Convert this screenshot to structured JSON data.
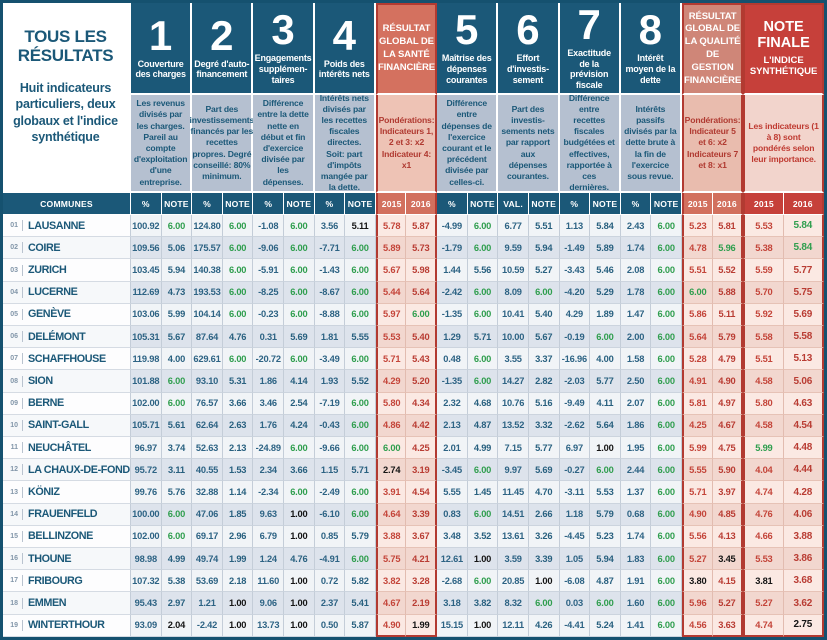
{
  "colors": {
    "navy": "#1b5878",
    "desc_blue": "#b5c0d0",
    "salmon": "#d4715f",
    "salmon_light": "#cf8678",
    "red": "#c6403a",
    "green": "#2f9e4e",
    "value_red": "#c4453a"
  },
  "panel": {
    "title": "TOUS LES RÉSULTATS",
    "subtitle": "Huit indicateurs particuliers, deux globaux et l'indice synthétique"
  },
  "header": {
    "groups": [
      {
        "kind": "indicator",
        "num": "1",
        "title": "Couverture des charges",
        "desc": "Les revenus divisés par les charges. Pareil au compte d'exploitation d'une entreprise."
      },
      {
        "kind": "indicator",
        "num": "2",
        "title": "Degré d'auto-financement",
        "desc": "Part des investissements financés par les recettes propres. Degré conseillé: 80% minimum."
      },
      {
        "kind": "indicator",
        "num": "3",
        "title": "Engagements supplémen-taires",
        "desc": "Différence entre la dette nette en début et fin d'exercice divisée par les dépenses."
      },
      {
        "kind": "indicator",
        "num": "4",
        "title": "Poids des intérêts nets",
        "desc": "Intérêts nets divisés par les recettes fiscales directes. Soit: part d'impôts mangée par la dette."
      },
      {
        "kind": "sante",
        "title": "RÉSULTAT GLOBAL DE LA SANTÉ FINANCIÈRE",
        "desc": "Pondérations: Indicateurs 1, 2 et 3: x2 Indicateur 4: x1"
      },
      {
        "kind": "indicator",
        "num": "5",
        "title": "Maîtrise des dépenses courantes",
        "desc": "Différence entre dépenses de l'exercice courant et le précédent divisée par celles-ci."
      },
      {
        "kind": "indicator",
        "num": "6",
        "title": "Effort d'investis-sement",
        "desc": "Part des investis-sements nets par rapport aux dépenses courantes."
      },
      {
        "kind": "indicator",
        "num": "7",
        "title": "Exactitude de la prévision fiscale",
        "desc": "Différence entre recettes fiscales budgétées et effectives, rapportée à ces dernières."
      },
      {
        "kind": "indicator",
        "num": "8",
        "title": "Intérêt moyen de la dette",
        "desc": "Intérêts passifs divisés par la dette brute à la fin de l'exercice sous revue."
      },
      {
        "kind": "quality",
        "title": "RÉSULTAT GLOBAL DE LA QUALITÉ DE GESTION FINANCIÈRE",
        "desc": "Pondérations: Indicateur 5 et 6: x2 Indicateurs 7 et 8: x1"
      },
      {
        "kind": "finale",
        "title": "NOTE FINALE",
        "subtitle": "L'INDICE SYNTHÉTIQUE",
        "desc": "Les indicateurs (1 à 8) sont pondérés selon leur importance."
      }
    ]
  },
  "table": {
    "commune_header": "COMMUNES",
    "sub_headers": [
      "%",
      "NOTE",
      "%",
      "NOTE",
      "%",
      "NOTE",
      "%",
      "NOTE",
      "2015",
      "2016",
      "%",
      "NOTE",
      "VAL.",
      "NOTE",
      "%",
      "NOTE",
      "%",
      "NOTE",
      "2015",
      "2016",
      "2015",
      "2016"
    ],
    "column_types": [
      "plain",
      "note",
      "plain",
      "note",
      "plain",
      "note",
      "plain",
      "note",
      "red15",
      "red16",
      "plain",
      "note",
      "plain",
      "note",
      "plain",
      "note",
      "plain",
      "note",
      "red15",
      "red16",
      "fin15",
      "fin16"
    ],
    "rows": [
      {
        "rank": "01",
        "name": "LAUSANNE",
        "values": [
          "100.92",
          "6.00",
          "124.80",
          "6.00",
          "-1.08",
          "6.00",
          "3.56",
          "5.11",
          "5.78",
          "5.87",
          "-4.99",
          "6.00",
          "6.77",
          "5.51",
          "1.13",
          "5.84",
          "2.43",
          "6.00",
          "5.23",
          "5.81",
          "5.53",
          "5.84"
        ]
      },
      {
        "rank": "02",
        "name": "COIRE",
        "values": [
          "109.56",
          "5.06",
          "175.57",
          "6.00",
          "-9.06",
          "6.00",
          "-7.71",
          "6.00",
          "5.89",
          "5.73",
          "-1.79",
          "6.00",
          "9.59",
          "5.94",
          "-1.49",
          "5.89",
          "1.74",
          "6.00",
          "4.78",
          "5.96",
          "5.38",
          "5.84"
        ]
      },
      {
        "rank": "03",
        "name": "ZURICH",
        "values": [
          "103.45",
          "5.94",
          "140.38",
          "6.00",
          "-5.91",
          "6.00",
          "-1.43",
          "6.00",
          "5.67",
          "5.98",
          "1.44",
          "5.56",
          "10.59",
          "5.27",
          "-3.43",
          "5.46",
          "2.08",
          "6.00",
          "5.51",
          "5.52",
          "5.59",
          "5.77"
        ]
      },
      {
        "rank": "04",
        "name": "LUCERNE",
        "values": [
          "112.69",
          "4.73",
          "193.53",
          "6.00",
          "-8.25",
          "6.00",
          "-8.67",
          "6.00",
          "5.44",
          "5.64",
          "-2.42",
          "6.00",
          "8.09",
          "6.00",
          "-4.20",
          "5.29",
          "1.78",
          "6.00",
          "6.00",
          "5.88",
          "5.70",
          "5.75"
        ]
      },
      {
        "rank": "05",
        "name": "GENÈVE",
        "values": [
          "103.06",
          "5.99",
          "104.14",
          "6.00",
          "-0.23",
          "6.00",
          "-8.88",
          "6.00",
          "5.97",
          "6.00",
          "-1.35",
          "6.00",
          "10.41",
          "5.40",
          "4.29",
          "1.89",
          "1.47",
          "6.00",
          "5.86",
          "5.11",
          "5.92",
          "5.69"
        ]
      },
      {
        "rank": "06",
        "name": "DELÉMONT",
        "values": [
          "105.31",
          "5.67",
          "87.64",
          "4.76",
          "0.31",
          "5.69",
          "1.81",
          "5.55",
          "5.53",
          "5.40",
          "1.29",
          "5.71",
          "10.00",
          "5.67",
          "-0.19",
          "6.00",
          "2.00",
          "6.00",
          "5.64",
          "5.79",
          "5.58",
          "5.58"
        ]
      },
      {
        "rank": "07",
        "name": "SCHAFFHOUSE",
        "values": [
          "119.98",
          "4.00",
          "629.61",
          "6.00",
          "-20.72",
          "6.00",
          "-3.49",
          "6.00",
          "5.71",
          "5.43",
          "0.48",
          "6.00",
          "3.55",
          "3.37",
          "-16.96",
          "4.00",
          "1.58",
          "6.00",
          "5.28",
          "4.79",
          "5.51",
          "5.13"
        ]
      },
      {
        "rank": "08",
        "name": "SION",
        "values": [
          "101.88",
          "6.00",
          "93.10",
          "5.31",
          "1.86",
          "4.14",
          "1.93",
          "5.52",
          "4.29",
          "5.20",
          "-1.35",
          "6.00",
          "14.27",
          "2.82",
          "-2.03",
          "5.77",
          "2.50",
          "6.00",
          "4.91",
          "4.90",
          "4.58",
          "5.06"
        ]
      },
      {
        "rank": "09",
        "name": "BERNE",
        "values": [
          "102.00",
          "6.00",
          "76.57",
          "3.66",
          "3.46",
          "2.54",
          "-7.19",
          "6.00",
          "5.80",
          "4.34",
          "2.32",
          "4.68",
          "10.76",
          "5.16",
          "-9.49",
          "4.11",
          "2.07",
          "6.00",
          "5.81",
          "4.97",
          "5.80",
          "4.63"
        ]
      },
      {
        "rank": "10",
        "name": "SAINT-GALL",
        "values": [
          "105.71",
          "5.61",
          "62.64",
          "2.63",
          "1.76",
          "4.24",
          "-0.43",
          "6.00",
          "4.86",
          "4.42",
          "2.13",
          "4.87",
          "13.52",
          "3.32",
          "-2.62",
          "5.64",
          "1.86",
          "6.00",
          "4.25",
          "4.67",
          "4.58",
          "4.54"
        ]
      },
      {
        "rank": "11",
        "name": "NEUCHÂTEL",
        "values": [
          "96.97",
          "3.74",
          "52.63",
          "2.13",
          "-24.89",
          "6.00",
          "-9.66",
          "6.00",
          "6.00",
          "4.25",
          "2.01",
          "4.99",
          "7.15",
          "5.77",
          "6.97",
          "1.00",
          "1.95",
          "6.00",
          "5.99",
          "4.75",
          "5.99",
          "4.48"
        ]
      },
      {
        "rank": "12",
        "name": "LA CHAUX-DE-FONDS",
        "values": [
          "95.72",
          "3.11",
          "40.55",
          "1.53",
          "2.34",
          "3.66",
          "1.15",
          "5.71",
          "2.74",
          "3.19",
          "-3.45",
          "6.00",
          "9.97",
          "5.69",
          "-0.27",
          "6.00",
          "2.44",
          "6.00",
          "5.55",
          "5.90",
          "4.04",
          "4.44"
        ]
      },
      {
        "rank": "13",
        "name": "KÖNIZ",
        "values": [
          "99.76",
          "5.76",
          "32.88",
          "1.14",
          "-2.34",
          "6.00",
          "-2.49",
          "6.00",
          "3.91",
          "4.54",
          "5.55",
          "1.45",
          "11.45",
          "4.70",
          "-3.11",
          "5.53",
          "1.37",
          "6.00",
          "5.71",
          "3.97",
          "4.74",
          "4.28"
        ]
      },
      {
        "rank": "14",
        "name": "FRAUENFELD",
        "values": [
          "100.00",
          "6.00",
          "47.06",
          "1.85",
          "9.63",
          "1.00",
          "-6.10",
          "6.00",
          "4.64",
          "3.39",
          "0.83",
          "6.00",
          "14.51",
          "2.66",
          "1.18",
          "5.79",
          "0.68",
          "6.00",
          "4.90",
          "4.85",
          "4.76",
          "4.06"
        ]
      },
      {
        "rank": "15",
        "name": "BELLINZONE",
        "values": [
          "102.00",
          "6.00",
          "69.17",
          "2.96",
          "6.79",
          "1.00",
          "0.85",
          "5.79",
          "3.88",
          "3.67",
          "3.48",
          "3.52",
          "13.61",
          "3.26",
          "-4.45",
          "5.23",
          "1.74",
          "6.00",
          "5.56",
          "4.13",
          "4.66",
          "3.88"
        ]
      },
      {
        "rank": "16",
        "name": "THOUNE",
        "values": [
          "98.98",
          "4.99",
          "49.74",
          "1.99",
          "1.24",
          "4.76",
          "-4.91",
          "6.00",
          "5.75",
          "4.21",
          "12.61",
          "1.00",
          "3.59",
          "3.39",
          "1.05",
          "5.94",
          "1.83",
          "6.00",
          "5.27",
          "3.45",
          "5.53",
          "3.86"
        ]
      },
      {
        "rank": "17",
        "name": "FRIBOURG",
        "values": [
          "107.32",
          "5.38",
          "53.69",
          "2.18",
          "11.60",
          "1.00",
          "0.72",
          "5.82",
          "3.82",
          "3.28",
          "-2.68",
          "6.00",
          "20.85",
          "1.00",
          "-6.08",
          "4.87",
          "1.91",
          "6.00",
          "3.80",
          "4.15",
          "3.81",
          "3.68"
        ]
      },
      {
        "rank": "18",
        "name": "EMMEN",
        "values": [
          "95.43",
          "2.97",
          "1.21",
          "1.00",
          "9.06",
          "1.00",
          "2.37",
          "5.41",
          "4.67",
          "2.19",
          "3.18",
          "3.82",
          "8.32",
          "6.00",
          "0.03",
          "6.00",
          "1.60",
          "6.00",
          "5.96",
          "5.27",
          "5.27",
          "3.62"
        ]
      },
      {
        "rank": "19",
        "name": "WINTERTHOUR",
        "values": [
          "93.09",
          "2.04",
          "-2.42",
          "1.00",
          "13.73",
          "1.00",
          "0.50",
          "5.87",
          "4.90",
          "1.99",
          "15.15",
          "1.00",
          "12.11",
          "4.26",
          "-4.41",
          "5.24",
          "1.41",
          "6.00",
          "4.56",
          "3.63",
          "4.74",
          "2.75"
        ]
      }
    ]
  }
}
